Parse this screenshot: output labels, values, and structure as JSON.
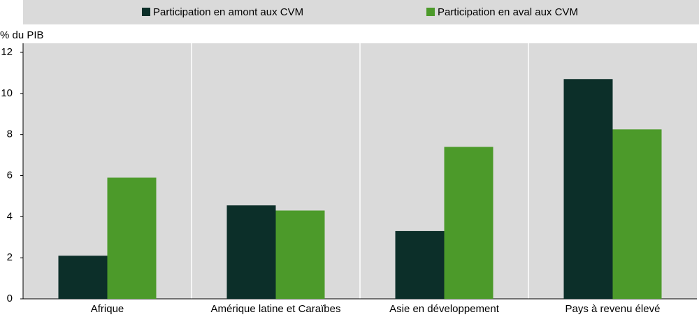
{
  "chart_data": {
    "type": "bar",
    "y_axis_label": "% du PIB",
    "categories": [
      "Afrique",
      "Amérique latine et Caraïbes",
      "Asie en développement",
      "Pays à revenu élevé"
    ],
    "series": [
      {
        "name": "Participation en amont aux CVM",
        "color": "#0c2f29",
        "values": [
          2.1,
          4.55,
          3.3,
          10.7
        ]
      },
      {
        "name": "Participation en aval aux CVM",
        "color": "#4c9a2a",
        "values": [
          5.9,
          4.3,
          7.4,
          8.25
        ]
      }
    ],
    "ylim": [
      0,
      12
    ],
    "yticks": [
      0,
      2,
      4,
      6,
      8,
      10,
      12
    ],
    "grid": false
  }
}
